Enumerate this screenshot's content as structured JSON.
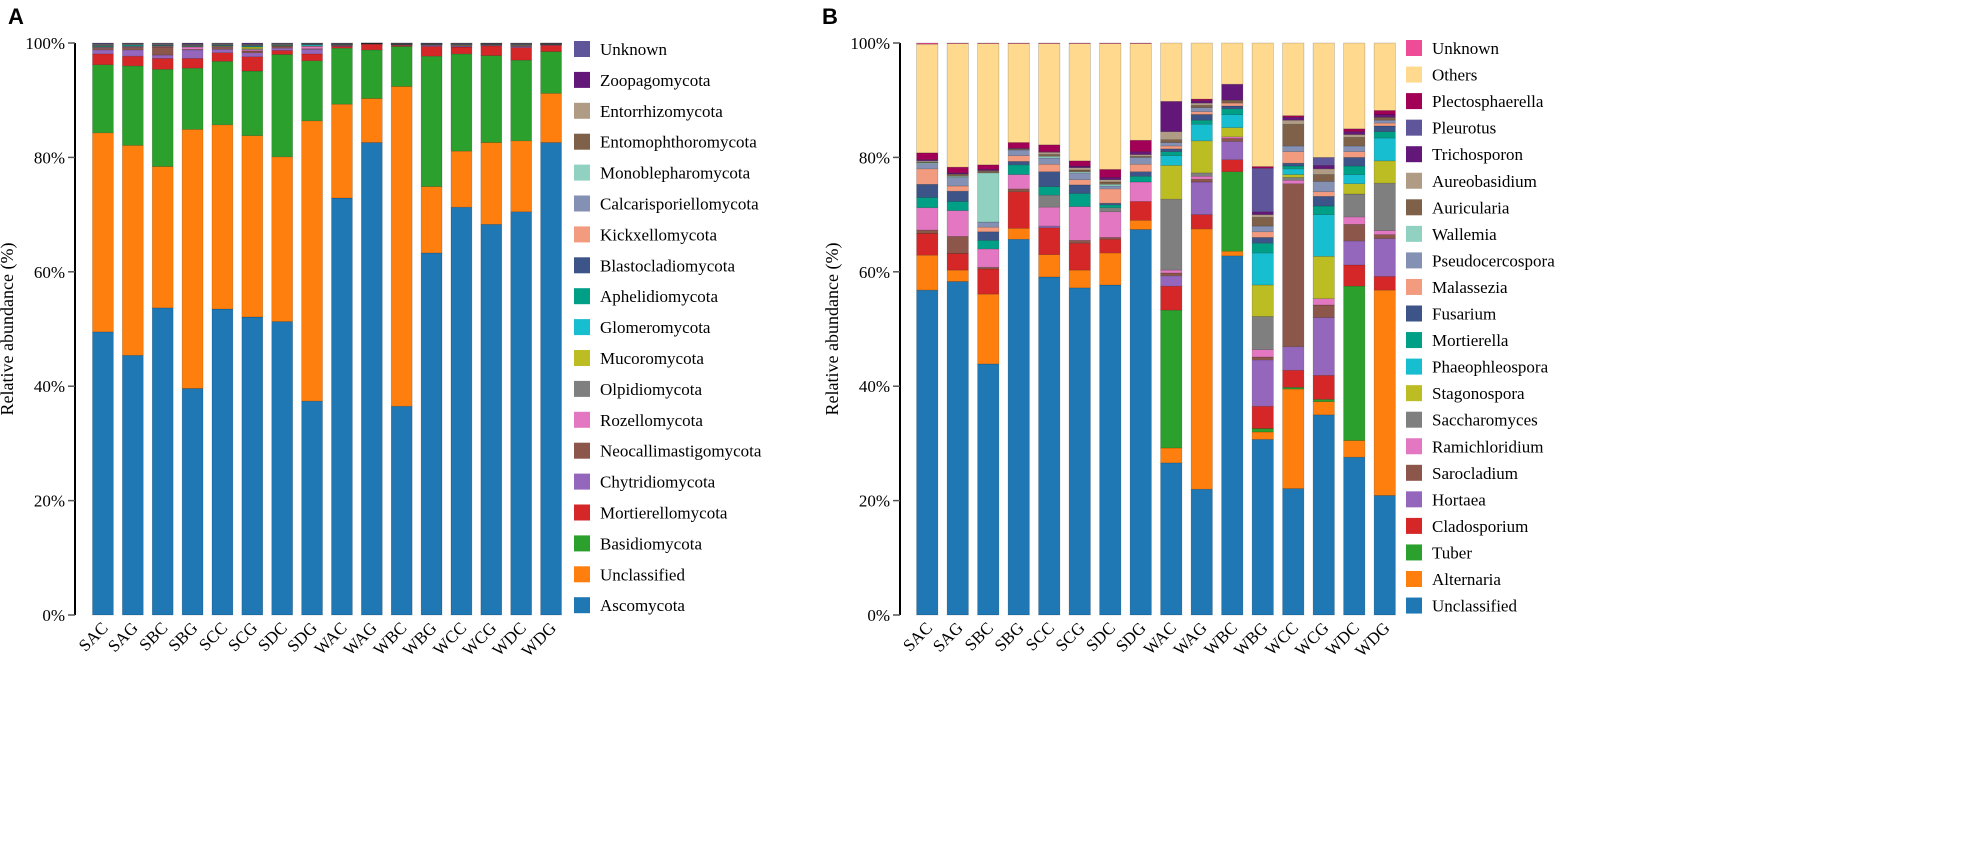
{
  "chart_data": [
    {
      "panel": "A",
      "type": "bar",
      "stacked": true,
      "ylabel": "Relative abundance (%)",
      "ylim": [
        0,
        100
      ],
      "yticks": [
        "0%",
        "20%",
        "40%",
        "60%",
        "80%",
        "100%"
      ],
      "legend_position": "right",
      "categories": [
        "SAC",
        "SAG",
        "SBC",
        "SBG",
        "SCC",
        "SCG",
        "SDC",
        "SDG",
        "WAC",
        "WAG",
        "WBC",
        "WBG",
        "WCC",
        "WCG",
        "WDC",
        "WDG"
      ],
      "series": [
        {
          "name": "Ascomycota",
          "color": "#1f77b4"
        },
        {
          "name": "Unclassified",
          "color": "#ff7f0e"
        },
        {
          "name": "Basidiomycota",
          "color": "#2ca02c"
        },
        {
          "name": "Mortierellomycota",
          "color": "#d62728"
        },
        {
          "name": "Chytridiomycota",
          "color": "#9467bd"
        },
        {
          "name": "Neocallimastigomycota",
          "color": "#8c564b"
        },
        {
          "name": "Rozellomycota",
          "color": "#e377c2"
        },
        {
          "name": "Olpidiomycota",
          "color": "#7f7f7f"
        },
        {
          "name": "Mucoromycota",
          "color": "#bcbd22"
        },
        {
          "name": "Glomeromycota",
          "color": "#17becf"
        },
        {
          "name": "Aphelidiomycota",
          "color": "#00a087"
        },
        {
          "name": "Blastocladiomycota",
          "color": "#3c5488"
        },
        {
          "name": "Kickxellomycota",
          "color": "#f39b7f"
        },
        {
          "name": "Calcarisporiellomycota",
          "color": "#8491b4"
        },
        {
          "name": "Monoblepharomycota",
          "color": "#91d1c2"
        },
        {
          "name": "Entomophthoromycota",
          "color": "#7e6148"
        },
        {
          "name": "Entorrhizomycota",
          "color": "#b09c85"
        },
        {
          "name": "Zoopagomycota",
          "color": "#631879"
        },
        {
          "name": "Unknown",
          "color": "#5f559b"
        }
      ],
      "cumulative_percent": [
        [
          49.5,
          84.3,
          96.2,
          98.1,
          98.8,
          99.1,
          99.2,
          99.3,
          99.35,
          99.4,
          99.5,
          99.6,
          99.65,
          99.7,
          99.75,
          99.8,
          99.85,
          99.9,
          100
        ],
        [
          45.4,
          82.1,
          96.0,
          97.7,
          98.8,
          99.2,
          99.3,
          99.4,
          99.45,
          99.6,
          99.65,
          99.7,
          99.75,
          99.8,
          99.85,
          99.9,
          99.92,
          99.95,
          100
        ],
        [
          53.7,
          78.4,
          95.4,
          97.3,
          97.9,
          99.3,
          99.4,
          99.45,
          99.5,
          99.55,
          99.6,
          99.65,
          99.7,
          99.75,
          99.8,
          99.85,
          99.9,
          99.95,
          100
        ],
        [
          39.6,
          84.9,
          95.6,
          97.3,
          98.8,
          98.9,
          99.3,
          99.35,
          99.4,
          99.45,
          99.5,
          99.55,
          99.6,
          99.65,
          99.7,
          99.75,
          99.8,
          99.9,
          100
        ],
        [
          53.5,
          85.7,
          96.8,
          98.3,
          98.9,
          99.2,
          99.3,
          99.4,
          99.5,
          99.55,
          99.6,
          99.65,
          99.7,
          99.75,
          99.8,
          99.85,
          99.9,
          99.95,
          100
        ],
        [
          52.1,
          83.8,
          95.1,
          97.6,
          98.3,
          98.6,
          98.8,
          99.0,
          99.3,
          99.4,
          99.5,
          99.55,
          99.6,
          99.65,
          99.7,
          99.75,
          99.8,
          99.9,
          100
        ],
        [
          51.3,
          80.1,
          98.0,
          98.7,
          99.1,
          99.4,
          99.45,
          99.5,
          99.55,
          99.6,
          99.65,
          99.7,
          99.75,
          99.8,
          99.85,
          99.9,
          99.92,
          99.95,
          100
        ],
        [
          37.4,
          86.4,
          96.9,
          98.1,
          98.9,
          99.0,
          99.4,
          99.45,
          99.5,
          99.7,
          99.75,
          99.8,
          99.82,
          99.85,
          99.88,
          99.9,
          99.92,
          99.95,
          100
        ],
        [
          72.9,
          89.3,
          99.1,
          99.4,
          99.5,
          99.55,
          99.6,
          99.65,
          99.7,
          99.72,
          99.75,
          99.8,
          99.82,
          99.85,
          99.88,
          99.9,
          99.92,
          99.95,
          100
        ],
        [
          82.6,
          90.3,
          98.8,
          99.8,
          99.82,
          99.84,
          99.86,
          99.88,
          99.9,
          99.91,
          99.92,
          99.93,
          99.94,
          99.95,
          99.96,
          99.97,
          99.98,
          99.99,
          100
        ],
        [
          36.5,
          92.4,
          99.4,
          99.6,
          99.65,
          99.7,
          99.72,
          99.75,
          99.78,
          99.8,
          99.82,
          99.85,
          99.88,
          99.9,
          99.92,
          99.94,
          99.96,
          99.98,
          100
        ],
        [
          63.3,
          74.9,
          97.7,
          99.4,
          99.6,
          99.65,
          99.7,
          99.72,
          99.75,
          99.78,
          99.8,
          99.82,
          99.85,
          99.88,
          99.9,
          99.92,
          99.94,
          99.97,
          100
        ],
        [
          71.3,
          81.1,
          98.1,
          99.3,
          99.45,
          99.5,
          99.55,
          99.6,
          99.65,
          99.7,
          99.72,
          99.75,
          99.8,
          99.85,
          99.88,
          99.9,
          99.93,
          99.96,
          100
        ],
        [
          68.3,
          82.6,
          97.8,
          99.5,
          99.6,
          99.65,
          99.7,
          99.72,
          99.75,
          99.78,
          99.8,
          99.82,
          99.85,
          99.88,
          99.9,
          99.92,
          99.94,
          99.97,
          100
        ],
        [
          70.5,
          82.9,
          97.0,
          99.2,
          99.4,
          99.5,
          99.55,
          99.6,
          99.65,
          99.7,
          99.72,
          99.75,
          99.8,
          99.85,
          99.88,
          99.9,
          99.93,
          99.96,
          100
        ],
        [
          82.6,
          91.2,
          98.5,
          99.6,
          99.65,
          99.7,
          99.72,
          99.75,
          99.78,
          99.8,
          99.82,
          99.85,
          99.88,
          99.9,
          99.92,
          99.94,
          99.96,
          99.98,
          100
        ]
      ]
    },
    {
      "panel": "B",
      "type": "bar",
      "stacked": true,
      "ylabel": "Relative abundance (%)",
      "ylim": [
        0,
        100
      ],
      "yticks": [
        "0%",
        "20%",
        "40%",
        "60%",
        "80%",
        "100%"
      ],
      "legend_position": "right",
      "categories": [
        "SAC",
        "SAG",
        "SBC",
        "SBG",
        "SCC",
        "SCG",
        "SDC",
        "SDG",
        "WAC",
        "WAG",
        "WBC",
        "WBG",
        "WCC",
        "WCG",
        "WDC",
        "WDG"
      ],
      "series": [
        {
          "name": "Unclassified",
          "color": "#1f77b4"
        },
        {
          "name": "Alternaria",
          "color": "#ff7f0e"
        },
        {
          "name": "Tuber",
          "color": "#2ca02c"
        },
        {
          "name": "Cladosporium",
          "color": "#d62728"
        },
        {
          "name": "Hortaea",
          "color": "#9467bd"
        },
        {
          "name": "Sarocladium",
          "color": "#8c564b"
        },
        {
          "name": "Ramichloridium",
          "color": "#e377c2"
        },
        {
          "name": "Saccharomyces",
          "color": "#7f7f7f"
        },
        {
          "name": "Stagonospora",
          "color": "#bcbd22"
        },
        {
          "name": "Phaeophleospora",
          "color": "#17becf"
        },
        {
          "name": "Mortierella",
          "color": "#00a087"
        },
        {
          "name": "Fusarium",
          "color": "#3c5488"
        },
        {
          "name": "Malassezia",
          "color": "#f39b7f"
        },
        {
          "name": "Pseudocercospora",
          "color": "#8491b4"
        },
        {
          "name": "Wallemia",
          "color": "#91d1c2"
        },
        {
          "name": "Auricularia",
          "color": "#7e6148"
        },
        {
          "name": "Aureobasidium",
          "color": "#b09c85"
        },
        {
          "name": "Trichosporon",
          "color": "#631879"
        },
        {
          "name": "Pleurotus",
          "color": "#5f559b"
        },
        {
          "name": "Plectosphaerella",
          "color": "#a20056"
        },
        {
          "name": "Others",
          "color": "#fed98e"
        },
        {
          "name": "Unknown",
          "color": "#ee4c97"
        }
      ],
      "cumulative_percent": [
        [
          56.8,
          62.9,
          62.9,
          66.7,
          66.7,
          67.3,
          71.2,
          71.2,
          71.2,
          71.2,
          73.0,
          75.3,
          78.0,
          78.9,
          79.1,
          79.2,
          79.4,
          79.6,
          79.6,
          80.8,
          99.8,
          100
        ],
        [
          58.3,
          60.3,
          60.3,
          63.2,
          63.2,
          66.2,
          70.7,
          70.7,
          70.7,
          70.7,
          72.3,
          74.1,
          75.0,
          76.5,
          76.7,
          77.0,
          77.1,
          77.3,
          77.3,
          78.3,
          99.9,
          100
        ],
        [
          43.9,
          56.1,
          56.1,
          60.5,
          60.5,
          60.8,
          64.0,
          64.0,
          64.0,
          64.0,
          65.5,
          67.0,
          67.8,
          68.7,
          77.3,
          77.6,
          77.7,
          77.9,
          77.9,
          78.7,
          99.9,
          100
        ],
        [
          65.7,
          67.6,
          67.6,
          74.0,
          74.0,
          74.5,
          77.0,
          77.0,
          77.0,
          77.0,
          78.7,
          79.3,
          80.3,
          81.3,
          81.3,
          81.4,
          81.5,
          81.6,
          81.6,
          82.6,
          99.9,
          100
        ],
        [
          59.1,
          63.0,
          63.0,
          67.7,
          68.0,
          68.0,
          71.3,
          73.4,
          73.4,
          73.4,
          74.9,
          77.5,
          78.8,
          79.9,
          80.2,
          80.5,
          80.9,
          81.0,
          81.0,
          82.2,
          99.9,
          100
        ],
        [
          57.2,
          60.3,
          60.3,
          65.0,
          65.0,
          65.5,
          71.4,
          71.4,
          71.4,
          71.4,
          73.7,
          75.2,
          76.1,
          77.3,
          77.5,
          77.8,
          78.2,
          78.5,
          78.5,
          79.4,
          99.9,
          100
        ],
        [
          57.7,
          63.3,
          63.3,
          65.7,
          65.7,
          66.0,
          70.5,
          71.2,
          71.2,
          71.2,
          71.7,
          72.0,
          74.5,
          75.0,
          75.3,
          75.7,
          76.1,
          76.5,
          76.5,
          77.9,
          99.9,
          100
        ],
        [
          67.4,
          69.0,
          69.0,
          72.3,
          72.3,
          72.3,
          75.7,
          75.7,
          75.7,
          75.7,
          76.7,
          77.5,
          78.8,
          80.0,
          80.0,
          80.2,
          80.5,
          81.0,
          81.0,
          83.0,
          99.9,
          100
        ],
        [
          26.6,
          29.2,
          53.3,
          57.5,
          59.3,
          59.8,
          60.3,
          72.7,
          78.6,
          80.3,
          81.0,
          81.5,
          82.0,
          82.6,
          82.6,
          83.1,
          84.5,
          89.8,
          89.8,
          89.8,
          100,
          100
        ],
        [
          22.0,
          67.5,
          67.5,
          70.0,
          75.7,
          76.2,
          76.7,
          77.3,
          82.9,
          85.8,
          86.5,
          87.5,
          88.0,
          88.7,
          88.7,
          89.1,
          89.5,
          89.9,
          89.9,
          90.2,
          100,
          100
        ],
        [
          62.8,
          63.6,
          77.5,
          79.6,
          82.8,
          83.3,
          83.6,
          83.6,
          85.2,
          87.5,
          88.5,
          89.0,
          89.5,
          89.5,
          89.5,
          90.0,
          90.0,
          92.8,
          92.8,
          92.8,
          100,
          100
        ],
        [
          30.7,
          32.0,
          32.6,
          36.5,
          44.6,
          45.1,
          46.4,
          52.2,
          57.7,
          63.3,
          65.0,
          66.0,
          67.0,
          68.0,
          68.0,
          69.5,
          70.0,
          70.5,
          78.1,
          78.4,
          100,
          100
        ],
        [
          22.1,
          39.5,
          39.8,
          42.8,
          46.9,
          75.4,
          76.0,
          76.5,
          77.0,
          78.0,
          78.5,
          79.0,
          81.0,
          82.0,
          82.0,
          85.8,
          86.5,
          87.0,
          87.0,
          87.3,
          100,
          100
        ],
        [
          35.0,
          37.3,
          37.7,
          41.9,
          52.0,
          54.2,
          55.3,
          55.3,
          62.7,
          70.0,
          71.5,
          73.2,
          74.0,
          75.8,
          75.8,
          77.0,
          78.0,
          78.6,
          80.0,
          80.0,
          100,
          100
        ],
        [
          27.6,
          30.5,
          57.5,
          61.2,
          65.4,
          68.3,
          69.6,
          73.6,
          75.4,
          77.0,
          78.5,
          80.0,
          81.0,
          82.0,
          82.0,
          83.5,
          84.0,
          84.5,
          84.5,
          85.0,
          100,
          100
        ],
        [
          20.9,
          56.8,
          56.8,
          59.2,
          65.8,
          66.5,
          67.2,
          75.5,
          79.4,
          83.4,
          84.5,
          85.5,
          86.0,
          86.5,
          86.5,
          87.0,
          87.0,
          87.5,
          87.5,
          88.2,
          100,
          100
        ]
      ]
    }
  ]
}
